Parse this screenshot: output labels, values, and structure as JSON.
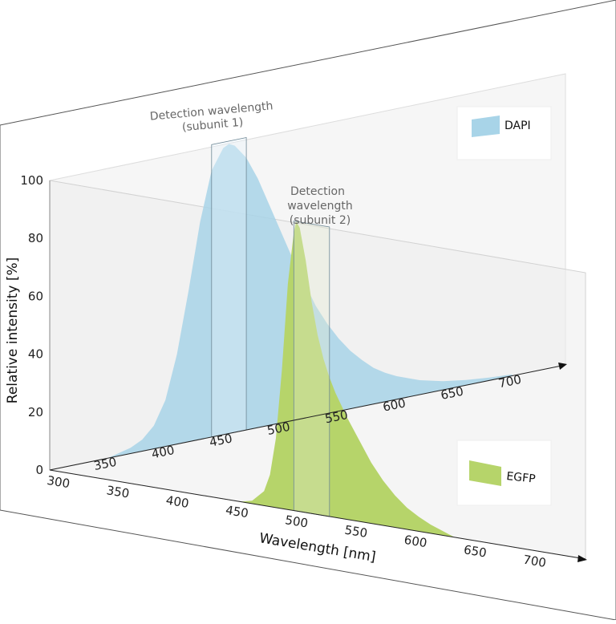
{
  "chart_data": {
    "type": "area",
    "title": "",
    "xlabel": "Wavelength [nm]",
    "ylabel": "Relative intensity [%]",
    "ylim": [
      0,
      100
    ],
    "y_ticks": [
      "0",
      "20",
      "40",
      "60",
      "80",
      "100"
    ],
    "front_axis_ticks": [
      "300",
      "350",
      "400",
      "450",
      "500",
      "550",
      "600",
      "650",
      "700"
    ],
    "back_axis_ticks": [
      "350",
      "400",
      "450",
      "500",
      "550",
      "600",
      "650",
      "700"
    ],
    "series": [
      {
        "name": "DAPI",
        "color": "#a8d4e8",
        "x": [
          350,
          360,
          370,
          380,
          390,
          400,
          410,
          420,
          430,
          440,
          450,
          455,
          460,
          470,
          480,
          490,
          500,
          510,
          520,
          530,
          540,
          550,
          560,
          570,
          580,
          590,
          600,
          620,
          640,
          660,
          680,
          700
        ],
        "y": [
          0,
          1,
          2,
          4,
          8,
          16,
          31,
          52,
          75,
          92,
          99,
          100,
          99,
          94,
          86,
          76,
          66,
          56,
          47,
          38,
          31,
          25,
          20,
          16,
          12.5,
          10,
          8,
          5,
          3,
          1.8,
          1,
          0.5
        ]
      },
      {
        "name": "EGFP",
        "color": "#b6d46a",
        "x": [
          460,
          470,
          480,
          485,
          490,
          495,
          500,
          505,
          507,
          510,
          515,
          520,
          525,
          530,
          535,
          540,
          550,
          560,
          570,
          580,
          590,
          600,
          610,
          620,
          640
        ],
        "y": [
          0,
          1,
          5,
          11,
          24,
          48,
          78,
          96,
          100,
          98,
          87,
          73,
          62,
          54,
          48,
          43,
          35,
          28,
          21,
          15.5,
          11,
          7.5,
          5,
          3,
          0
        ]
      }
    ],
    "detection_bands": [
      {
        "label_line1": "Detection wavelength",
        "label_line2": "(subunit 1)",
        "range": [
          440,
          470
        ],
        "plane": "DAPI"
      },
      {
        "label_line1": "Detection",
        "label_line2": "wavelength",
        "label_line3": "(subunit 2)",
        "range": [
          505,
          535
        ],
        "plane": "EGFP"
      }
    ],
    "legend": [
      "DAPI",
      "EGFP"
    ]
  }
}
